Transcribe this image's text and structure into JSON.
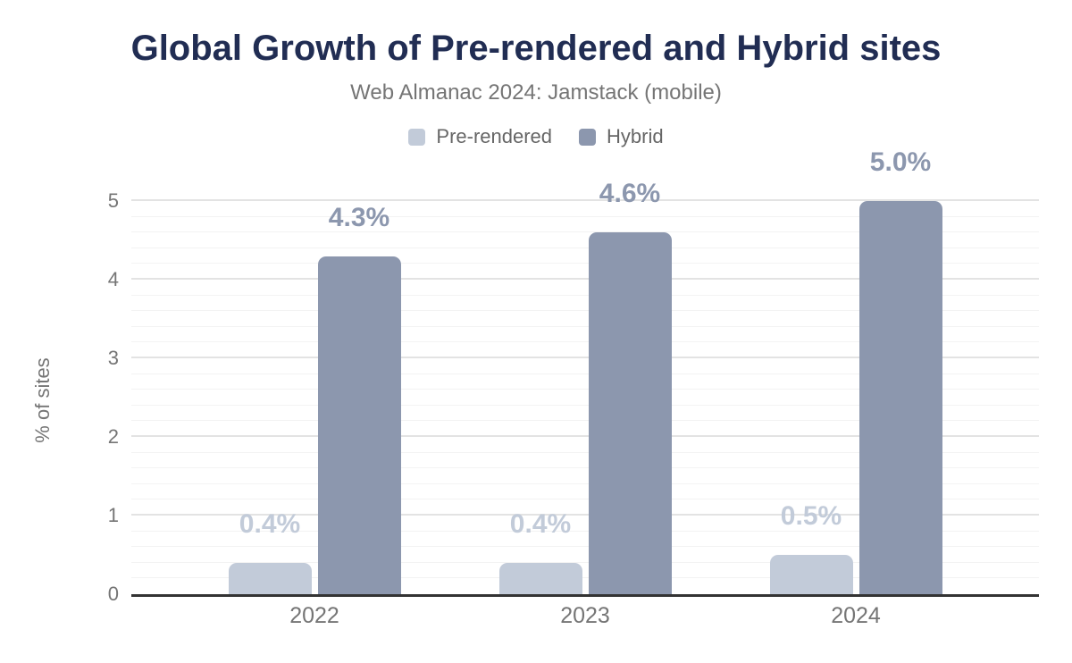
{
  "header": {
    "title": "Global Growth of Pre-rendered and Hybrid sites",
    "subtitle": "Web Almanac 2024: Jamstack (mobile)"
  },
  "chart_data": {
    "type": "bar",
    "title": "Global Growth of Pre-rendered and Hybrid sites",
    "subtitle": "Web Almanac 2024: Jamstack (mobile)",
    "categories": [
      "2022",
      "2023",
      "2024"
    ],
    "series": [
      {
        "name": "Pre-rendered",
        "color": "#c2cbd9",
        "values": [
          0.4,
          0.4,
          0.5
        ],
        "labels": [
          "0.4%",
          "0.4%",
          "0.5%"
        ]
      },
      {
        "name": "Hybrid",
        "color": "#8c97ae",
        "values": [
          4.3,
          4.6,
          5.0
        ],
        "labels": [
          "4.3%",
          "4.6%",
          "5.0%"
        ]
      }
    ],
    "xlabel": "",
    "ylabel": "% of sites",
    "ylim": [
      0,
      5
    ],
    "yticks": [
      0,
      1,
      2,
      3,
      4,
      5
    ],
    "minor_grid_step": 0.2,
    "grid": true,
    "legend_position": "top",
    "colors": {
      "title": "#212d53",
      "subtitle": "#757575",
      "legend_text": "#666666",
      "tick_label": "#757575",
      "axis_line": "#333333",
      "major_grid": "#e3e3e3",
      "minor_grid": "#f3f3f3",
      "background": "#ffffff"
    }
  }
}
